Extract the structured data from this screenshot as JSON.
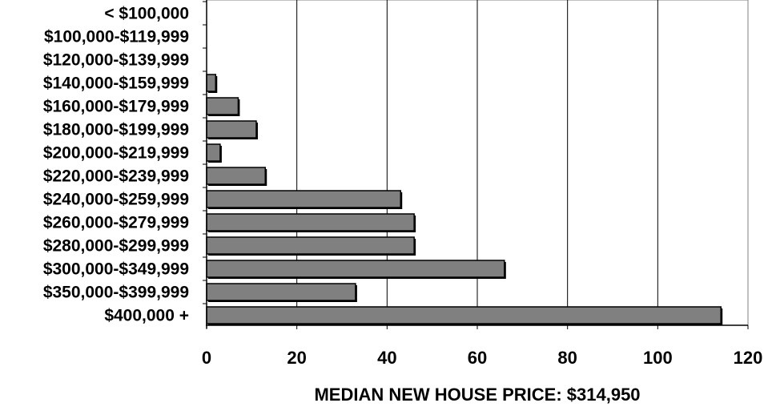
{
  "chart_data": {
    "type": "bar",
    "orientation": "horizontal",
    "categories": [
      "< $100,000",
      "$100,000-$119,999",
      "$120,000-$139,999",
      "$140,000-$159,999",
      "$160,000-$179,999",
      "$180,000-$199,999",
      "$200,000-$219,999",
      "$220,000-$239,999",
      "$240,000-$259,999",
      "$260,000-$279,999",
      "$280,000-$299,999",
      "$300,000-$349,999",
      "$350,000-$399,999",
      "$400,000 +"
    ],
    "values": [
      0,
      0,
      0,
      2,
      7,
      11,
      3,
      13,
      43,
      46,
      46,
      66,
      33,
      114
    ],
    "xlabel": "MEDIAN NEW HOUSE PRICE:  $314,950",
    "ylabel": "",
    "xlim": [
      0,
      120
    ],
    "xticks": [
      0,
      20,
      40,
      60,
      80,
      100,
      120
    ],
    "xtick_labels": [
      "0",
      "20",
      "40",
      "60",
      "80",
      "100",
      "120"
    ],
    "grid": "vertical",
    "legend": "none",
    "bar_color": "#808080",
    "bar_edge_color": "#000000",
    "background": "#ffffff"
  }
}
